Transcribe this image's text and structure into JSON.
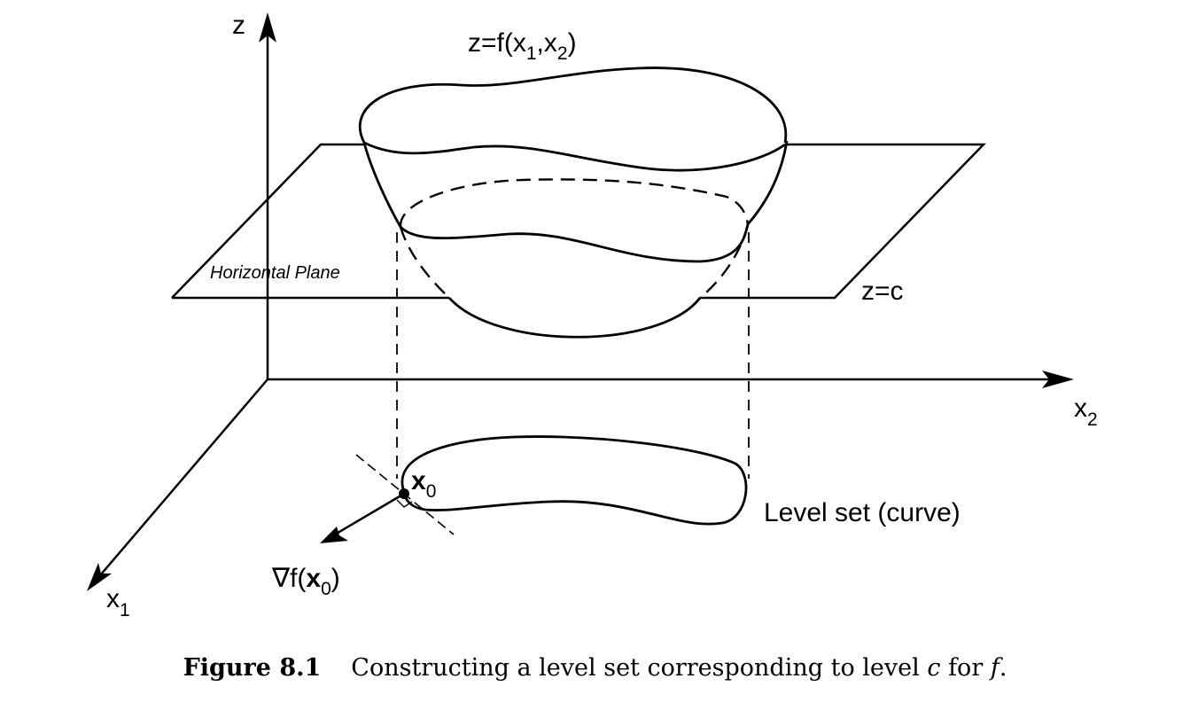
{
  "labels": {
    "z_axis": "z",
    "x1_axis": "x",
    "x1_sub": "1",
    "x2_axis": "x",
    "x2_sub": "2",
    "surface_pre": "z=f(x",
    "surface_sub1": "1",
    "surface_mid": ",x",
    "surface_sub2": "2",
    "surface_post": ")",
    "horizontal_plane": "Horizontal Plane",
    "plane_eq": "z=c",
    "x0_main": "x",
    "x0_sub": "0",
    "gradient_pre": "∇f(",
    "gradient_x": "x",
    "gradient_sub": "0",
    "gradient_post": ")",
    "level_set": "Level set (curve)"
  },
  "caption": {
    "number": "Figure 8.1",
    "text_before": "Constructing a level set corresponding to level ",
    "var_c": "c",
    "text_middle": " for ",
    "var_f": "f",
    "text_after": "."
  }
}
